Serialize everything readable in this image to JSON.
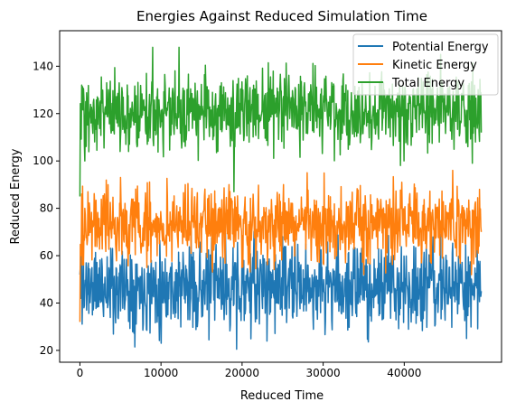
{
  "chart_data": {
    "type": "line",
    "title": "Energies Against Reduced Simulation Time",
    "xlabel": "Reduced Time",
    "ylabel": "Reduced Energy",
    "xlim": [
      -2500,
      52000
    ],
    "ylim": [
      15,
      155
    ],
    "xticks": [
      0,
      10000,
      20000,
      30000,
      40000
    ],
    "yticks": [
      20,
      40,
      60,
      80,
      100,
      120,
      140
    ],
    "grid": false,
    "legend_position": "top-right",
    "x_range": [
      0,
      49500
    ],
    "series": [
      {
        "name": "Potential Energy",
        "color": "#1f77b4",
        "mean": 47,
        "amplitude": 9,
        "min": 20.5,
        "max": 78,
        "anchors": [
          [
            0,
            52
          ],
          [
            200,
            78
          ],
          [
            500,
            38
          ],
          [
            1000,
            55
          ],
          [
            10000,
            23
          ],
          [
            19300,
            20.5
          ],
          [
            25000,
            68
          ],
          [
            44500,
            69
          ],
          [
            47700,
            25
          ],
          [
            49500,
            45
          ]
        ]
      },
      {
        "name": "Kinetic Energy",
        "color": "#ff7f0e",
        "mean": 73,
        "amplitude": 8,
        "min": 32,
        "max": 96,
        "anchors": [
          [
            0,
            32
          ],
          [
            300,
            56
          ],
          [
            1000,
            87
          ],
          [
            5000,
            93
          ],
          [
            20000,
            55
          ],
          [
            28000,
            95
          ],
          [
            35000,
            52
          ],
          [
            46000,
            96
          ],
          [
            49500,
            70
          ]
        ]
      },
      {
        "name": "Total Energy",
        "color": "#2ca02c",
        "mean": 121,
        "amplitude": 8,
        "min": 85,
        "max": 148,
        "anchors": [
          [
            0,
            85
          ],
          [
            200,
            132
          ],
          [
            600,
            100
          ],
          [
            9000,
            148
          ],
          [
            12200,
            148
          ],
          [
            19000,
            87
          ],
          [
            40000,
            100
          ],
          [
            44500,
            145
          ],
          [
            49500,
            112
          ]
        ]
      }
    ]
  }
}
